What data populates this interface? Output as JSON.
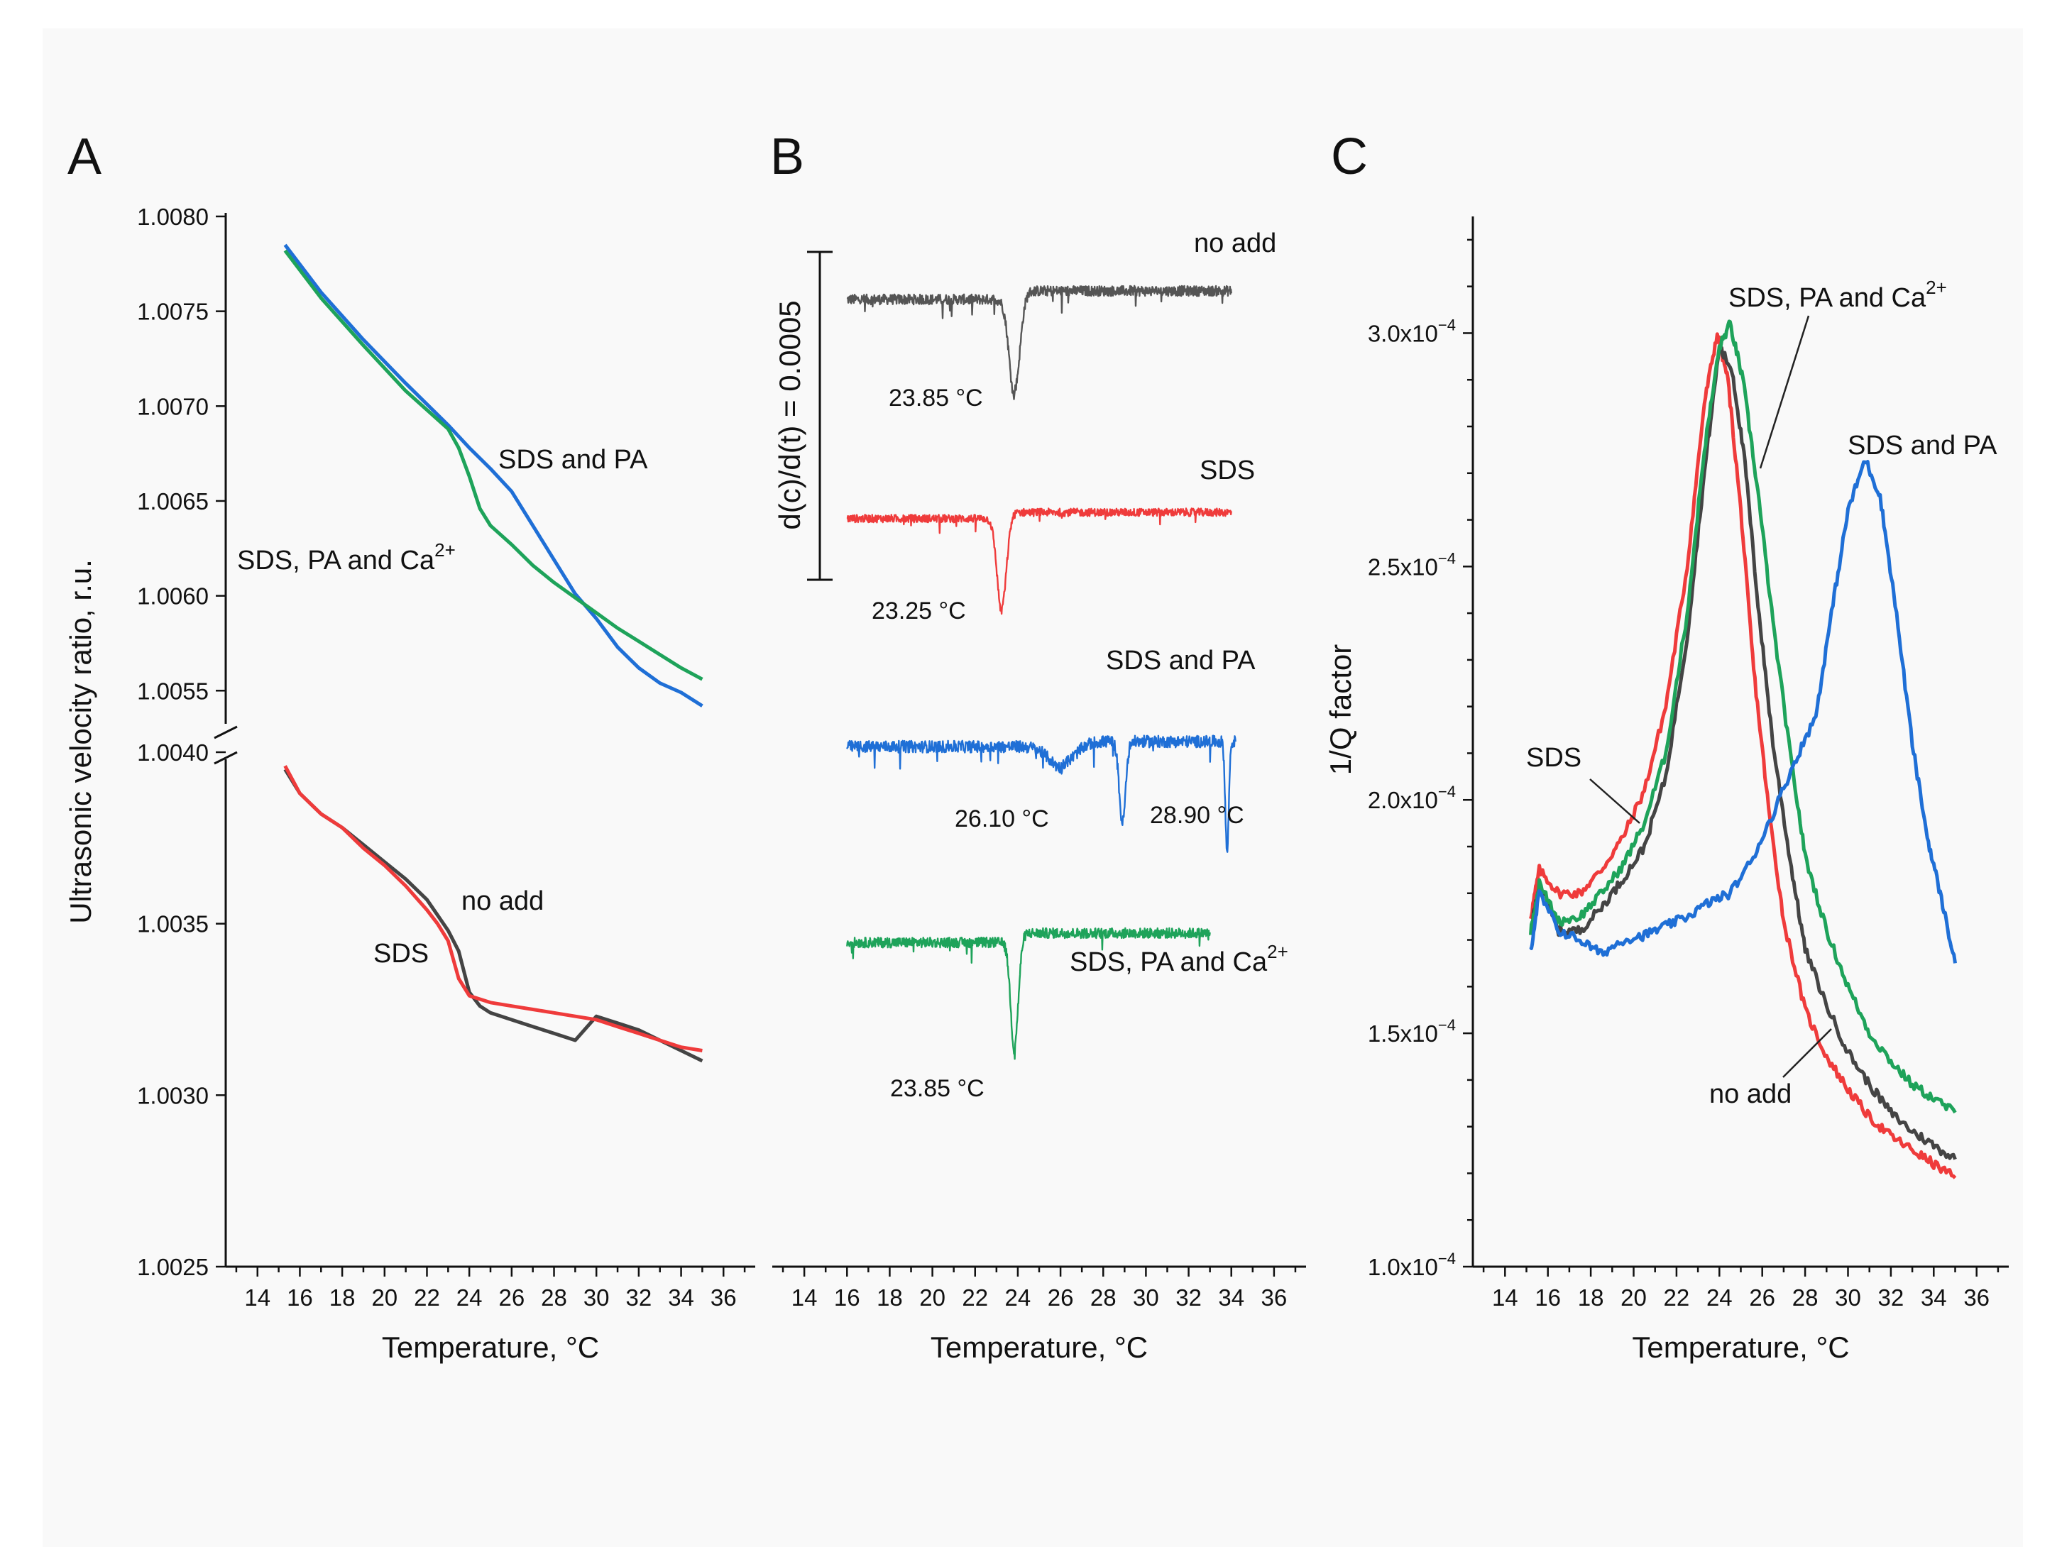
{
  "chart_data": [
    {
      "panel": "A",
      "type": "line",
      "xlabel": "Temperature, °C",
      "ylabel": "Ultrasonic velocity ratio, r.u.",
      "xlim": [
        12.5,
        37.5
      ],
      "xticks": [
        14,
        16,
        18,
        20,
        22,
        24,
        26,
        28,
        30,
        32,
        34,
        36
      ],
      "axis_break": true,
      "upper_segment": {
        "ylim": [
          1.0054,
          1.008
        ],
        "yticks": [
          "1.0080",
          "1.0075",
          "1.0070",
          "1.0065",
          "1.0060",
          "1.0055"
        ],
        "series": [
          {
            "name": "SDS and PA",
            "color": "#1f6fd6",
            "x": [
              15.3,
              17,
              19,
              21,
              23,
              24,
              25,
              26,
              27,
              28,
              29,
              30,
              31,
              32,
              33,
              34,
              35
            ],
            "y": [
              1.00785,
              1.0076,
              1.00735,
              1.00712,
              1.0069,
              1.00678,
              1.00667,
              1.00655,
              1.00637,
              1.00619,
              1.00601,
              1.00588,
              1.00573,
              1.00562,
              1.00554,
              1.00549,
              1.00542
            ]
          },
          {
            "name": "SDS, PA and Ca2+",
            "color": "#1ea35a",
            "x": [
              15.3,
              17,
              19,
              21,
              23,
              23.5,
              24,
              24.5,
              25,
              26,
              27,
              28,
              29,
              30,
              31,
              32,
              33,
              34,
              35
            ],
            "y": [
              1.00782,
              1.00757,
              1.00732,
              1.00708,
              1.00688,
              1.00678,
              1.00663,
              1.00646,
              1.00637,
              1.00627,
              1.00616,
              1.00607,
              1.00599,
              1.00591,
              1.00583,
              1.00576,
              1.00569,
              1.00562,
              1.00556
            ]
          }
        ]
      },
      "lower_segment": {
        "ylim": [
          1.0025,
          1.004
        ],
        "yticks": [
          "1.0040",
          "1.0035",
          "1.0030",
          "1.0025"
        ],
        "series": [
          {
            "name": "no add",
            "color": "#444444",
            "x": [
              15.3,
              16,
              17,
              18,
              19,
              20,
              21,
              22,
              23,
              23.5,
              24,
              24.5,
              25,
              26,
              27,
              28,
              29,
              30,
              31,
              32,
              33,
              34,
              35
            ],
            "y": [
              1.00395,
              1.00388,
              1.00382,
              1.00378,
              1.00373,
              1.00368,
              1.00363,
              1.00357,
              1.00348,
              1.00342,
              1.0033,
              1.00326,
              1.00324,
              1.00322,
              1.0032,
              1.00318,
              1.00316,
              1.00323,
              1.00321,
              1.00319,
              1.00316,
              1.00313,
              1.0031
            ]
          },
          {
            "name": "SDS",
            "color": "#ef3b3b",
            "x": [
              15.3,
              16,
              17,
              18,
              19,
              20,
              21,
              22,
              22.5,
              23,
              23.5,
              24,
              24.5,
              25,
              26,
              27,
              28,
              29,
              30,
              31,
              32,
              33,
              34,
              35
            ],
            "y": [
              1.00396,
              1.00388,
              1.00382,
              1.00378,
              1.00372,
              1.00367,
              1.00361,
              1.00354,
              1.0035,
              1.00345,
              1.00334,
              1.00329,
              1.00328,
              1.00327,
              1.00326,
              1.00325,
              1.00324,
              1.00323,
              1.00322,
              1.0032,
              1.00318,
              1.00316,
              1.00314,
              1.00313
            ]
          }
        ]
      },
      "annotations": [
        "SDS and PA",
        "SDS, PA and Ca",
        "no add",
        "SDS"
      ]
    },
    {
      "panel": "B",
      "type": "line",
      "xlabel": "Temperature, °C",
      "ylabel": "d(c)/d(t) = 0.0005",
      "xlim": [
        12.5,
        37.5
      ],
      "xticks": [
        14,
        16,
        18,
        20,
        22,
        24,
        26,
        28,
        30,
        32,
        34,
        36
      ],
      "series": [
        {
          "name": "no add",
          "color": "#555555",
          "x_range": [
            16,
            34
          ],
          "noise": 0.12,
          "dip_centers": [
            23.85
          ],
          "dip_depths": [
            2.3
          ],
          "dip_widths": [
            0.25
          ],
          "extra_shoulder": 0.5,
          "peak_label": "23.85 °C"
        },
        {
          "name": "SDS",
          "color": "#ef3b3b",
          "x_range": [
            16,
            34
          ],
          "noise": 0.1,
          "dip_centers": [
            23.25
          ],
          "dip_depths": [
            2.4
          ],
          "dip_widths": [
            0.22
          ],
          "extra_shoulder": 0.4,
          "peak_label": "23.25 °C"
        },
        {
          "name": "SDS and PA",
          "color": "#1f6fd6",
          "x_range": [
            16,
            34.2
          ],
          "noise": 0.14,
          "dip_centers": [
            26.1,
            28.9,
            33.8
          ],
          "dip_depths": [
            0.5,
            1.9,
            2.6
          ],
          "dip_widths": [
            0.6,
            0.15,
            0.08
          ],
          "extra_shoulder": 0.3,
          "peak_label": "26.10 °C",
          "peak_label2": "28.90 °C"
        },
        {
          "name": "SDS, PA and Ca2+",
          "color": "#1ea35a",
          "x_range": [
            16,
            33
          ],
          "noise": 0.13,
          "dip_centers": [
            23.85
          ],
          "dip_depths": [
            2.8
          ],
          "dip_widths": [
            0.18
          ],
          "extra_shoulder": 0.6,
          "peak_label": "23.85 °C"
        }
      ]
    },
    {
      "panel": "C",
      "type": "line",
      "xlabel": "Temperature, °C",
      "ylabel": "1/Q factor",
      "xlim": [
        12.5,
        37.5
      ],
      "ylim": [
        1.0,
        3.25
      ],
      "y_scale_label": "x10^-4",
      "xticks": [
        14,
        16,
        18,
        20,
        22,
        24,
        26,
        28,
        30,
        32,
        34,
        36
      ],
      "yticks": [
        {
          "mant": "1.0x10",
          "exp": "−4"
        },
        {
          "mant": "1.5x10",
          "exp": "−4"
        },
        {
          "mant": "2.0x10",
          "exp": "−4"
        },
        {
          "mant": "2.5x10",
          "exp": "−4"
        },
        {
          "mant": "3.0x10",
          "exp": "−4"
        }
      ],
      "ytick_values": [
        1.0,
        1.5,
        2.0,
        2.5,
        3.0
      ],
      "series": [
        {
          "name": "SDS",
          "color": "#ef3b3b",
          "x": [
            15.2,
            15.6,
            16.5,
            17.5,
            18.5,
            19.5,
            20.5,
            21.5,
            22.5,
            23.3,
            23.9,
            24.4,
            25,
            25.6,
            26.3,
            27,
            28,
            29,
            30,
            31,
            32,
            33,
            34,
            35
          ],
          "y": [
            1.75,
            1.85,
            1.8,
            1.8,
            1.85,
            1.92,
            2.02,
            2.2,
            2.5,
            2.85,
            3.0,
            2.9,
            2.62,
            2.28,
            1.98,
            1.74,
            1.55,
            1.45,
            1.38,
            1.32,
            1.28,
            1.25,
            1.22,
            1.19
          ]
        },
        {
          "name": "no add",
          "color": "#444444",
          "x": [
            15.2,
            15.6,
            16.5,
            17.5,
            18.5,
            19.5,
            20.5,
            21.5,
            22.5,
            23.3,
            24,
            24.6,
            25.2,
            25.8,
            26.5,
            27.3,
            28,
            29,
            30,
            31,
            32,
            33,
            34,
            35
          ],
          "y": [
            1.72,
            1.82,
            1.72,
            1.72,
            1.77,
            1.83,
            1.9,
            2.05,
            2.35,
            2.7,
            2.97,
            2.92,
            2.72,
            2.42,
            2.12,
            1.87,
            1.68,
            1.56,
            1.46,
            1.39,
            1.33,
            1.29,
            1.26,
            1.23
          ]
        },
        {
          "name": "SDS, PA and Ca2+",
          "color": "#1ea35a",
          "x": [
            15.2,
            15.6,
            16.5,
            17.5,
            18.5,
            19.5,
            20.5,
            21.5,
            22.5,
            23.3,
            24,
            24.5,
            25.1,
            25.8,
            26.5,
            27.3,
            28,
            29,
            30,
            31,
            32,
            33,
            34,
            35
          ],
          "y": [
            1.72,
            1.82,
            1.74,
            1.75,
            1.8,
            1.86,
            1.95,
            2.1,
            2.4,
            2.75,
            2.97,
            3.02,
            2.9,
            2.66,
            2.38,
            2.1,
            1.88,
            1.72,
            1.6,
            1.5,
            1.44,
            1.39,
            1.36,
            1.33
          ]
        },
        {
          "name": "SDS and PA",
          "color": "#1f6fd6",
          "x": [
            15.2,
            15.6,
            16.5,
            17.5,
            18.5,
            19.5,
            20.5,
            21.5,
            22.5,
            23.5,
            24.5,
            25.5,
            26.5,
            27.5,
            28.5,
            29.3,
            30,
            30.8,
            31.5,
            32.2,
            33,
            33.7,
            34.3,
            35
          ],
          "y": [
            1.68,
            1.8,
            1.72,
            1.7,
            1.67,
            1.7,
            1.71,
            1.73,
            1.75,
            1.78,
            1.8,
            1.87,
            1.97,
            2.08,
            2.18,
            2.42,
            2.62,
            2.73,
            2.65,
            2.42,
            2.12,
            1.92,
            1.8,
            1.65
          ]
        }
      ],
      "annotations": [
        "SDS",
        "SDS, PA and Ca",
        "SDS and PA",
        "no add"
      ]
    }
  ],
  "labels": {
    "panel_a": "A",
    "panel_b": "B",
    "panel_c": "C",
    "a_sds_pa": "SDS and PA",
    "a_ca_prefix": "SDS, PA and Ca",
    "a_ca_sup": "2+",
    "a_no_add": "no add",
    "a_sds": "SDS",
    "b_no_add": "no add",
    "b_sds": "SDS",
    "b_sds_pa": "SDS and PA",
    "b_ca_prefix": "SDS, PA and Ca",
    "b_ca_sup": "2+",
    "b_peak_1": "23.85 °C",
    "b_peak_2": "23.25 °C",
    "b_peak_3": "26.10 °C",
    "b_peak_4": "28.90 °C",
    "b_peak_5": "23.85 °C",
    "c_sds": "SDS",
    "c_ca_prefix": "SDS, PA and Ca",
    "c_ca_sup": "2+",
    "c_sds_pa": "SDS and PA",
    "c_no_add": "no add"
  }
}
